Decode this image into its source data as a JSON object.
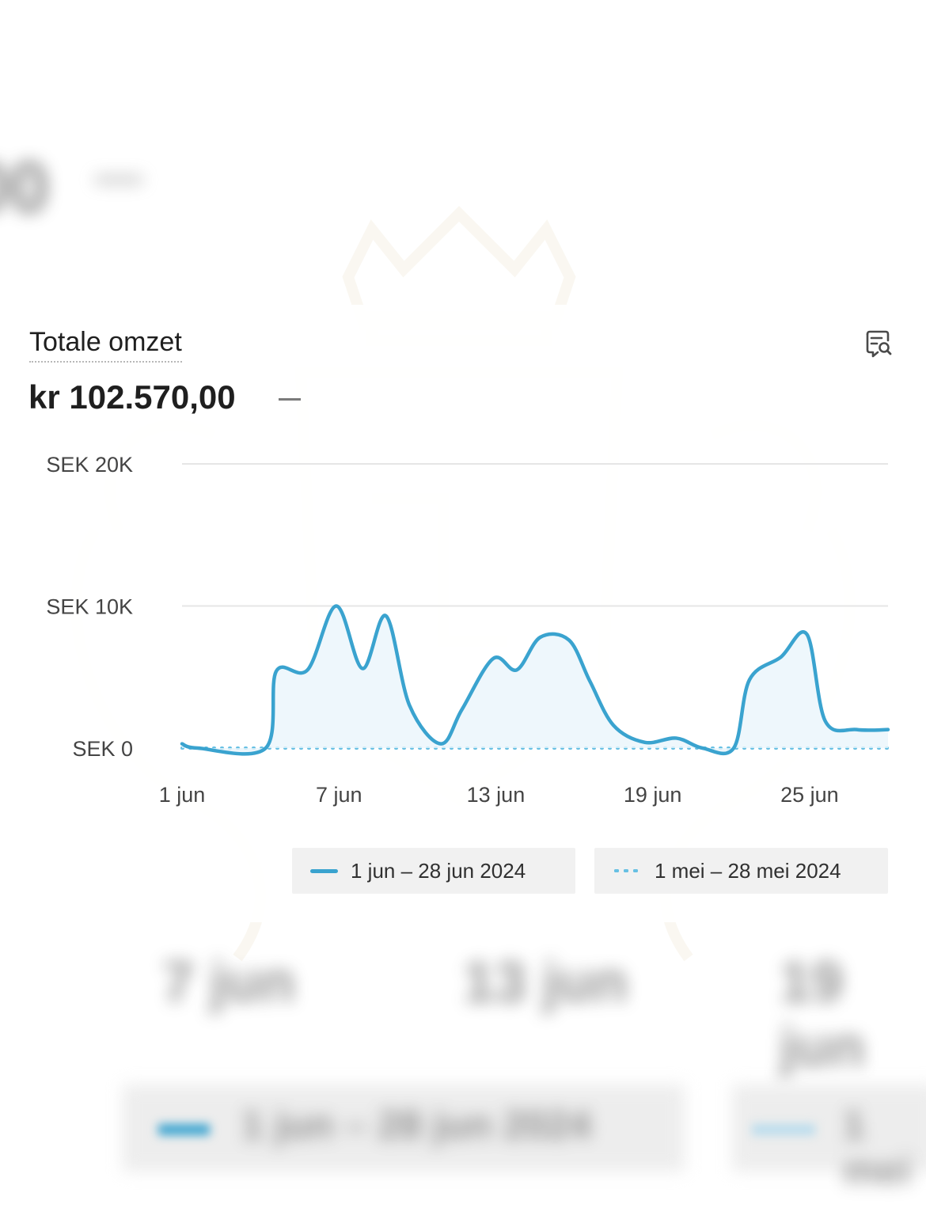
{
  "background": {
    "amount_fragment": "00",
    "x_labels": [
      "7 jun",
      "13 jun",
      "19 jun"
    ],
    "legend_labels": [
      "1 jun – 28 jun 2024",
      "1 mei"
    ]
  },
  "card": {
    "title": "Totale omzet",
    "amount": "kr 102.570,00",
    "explore_icon": "explore-data-icon"
  },
  "colors": {
    "current": "#3aa3cf",
    "previous": "#67c0e3",
    "fill": "#eaf5fb",
    "grid": "#e6e6e6"
  },
  "chart_data": {
    "type": "line",
    "title": "Totale omzet",
    "ylabel": "",
    "xlabel": "",
    "ylim": [
      0,
      20000
    ],
    "y_ticks": [
      {
        "value": 0,
        "label": "SEK 0"
      },
      {
        "value": 10000,
        "label": "SEK 10K"
      },
      {
        "value": 20000,
        "label": "SEK 20K"
      }
    ],
    "x_ticks": [
      {
        "day": 1,
        "label": "1 jun"
      },
      {
        "day": 7,
        "label": "7 jun"
      },
      {
        "day": 13,
        "label": "13 jun"
      },
      {
        "day": 19,
        "label": "19 jun"
      },
      {
        "day": 25,
        "label": "25 jun"
      }
    ],
    "x_range": [
      1,
      28
    ],
    "grid": true,
    "legend_position": "bottom",
    "series": [
      {
        "name": "1 jun – 28 jun 2024",
        "style": "solid",
        "points": [
          [
            1,
            300
          ],
          [
            1.6,
            0
          ],
          [
            4.2,
            0
          ],
          [
            4.6,
            5400
          ],
          [
            5.8,
            5500
          ],
          [
            6.9,
            10000
          ],
          [
            7.9,
            5600
          ],
          [
            8.8,
            9300
          ],
          [
            9.7,
            3000
          ],
          [
            10.9,
            300
          ],
          [
            11.7,
            2700
          ],
          [
            12.9,
            6300
          ],
          [
            13.8,
            5500
          ],
          [
            14.7,
            7800
          ],
          [
            15.8,
            7600
          ],
          [
            16.6,
            4700
          ],
          [
            17.5,
            1600
          ],
          [
            18.7,
            400
          ],
          [
            19.9,
            700
          ],
          [
            20.9,
            0
          ],
          [
            22.1,
            0
          ],
          [
            22.7,
            4800
          ],
          [
            23.9,
            6400
          ],
          [
            24.9,
            8000
          ],
          [
            25.6,
            1900
          ],
          [
            26.8,
            1300
          ],
          [
            28,
            1300
          ]
        ]
      },
      {
        "name": "1 mei – 28 mei 2024",
        "style": "dotted",
        "points": [
          [
            1,
            0
          ],
          [
            28,
            0
          ]
        ]
      }
    ]
  }
}
